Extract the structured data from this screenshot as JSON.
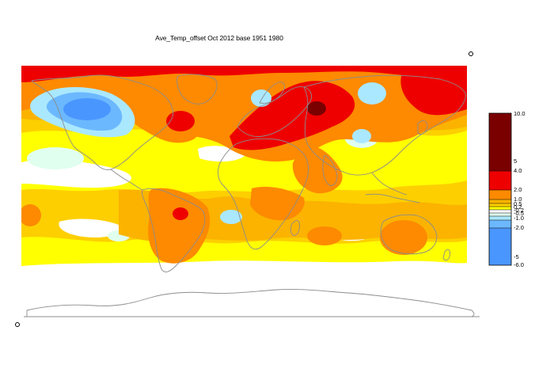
{
  "title": "Ave_Temp_offset Oct 2012  base 1951 1980",
  "palette": {
    "deep_red": "#7a0000",
    "red": "#ee0000",
    "orange": "#fd8a00",
    "orange_light": "#fbb300",
    "yellow_orange": "#fdcf00",
    "yellow": "#ffff00",
    "white": "#ffffff",
    "pale_cyan": "#e0ffef",
    "cyan": "#aae8ff",
    "light_blue": "#6cb8ff",
    "blue": "#4a96ff",
    "coastline": "#8c8c8c"
  },
  "legend": {
    "tick_labels": [
      "10.0",
      "5",
      "4.0",
      "2.0",
      "1.0",
      "0.5",
      "0.2",
      "-0.2",
      "-0.5",
      "-1.0",
      "-2.0",
      "-5",
      "-6.0"
    ]
  }
}
